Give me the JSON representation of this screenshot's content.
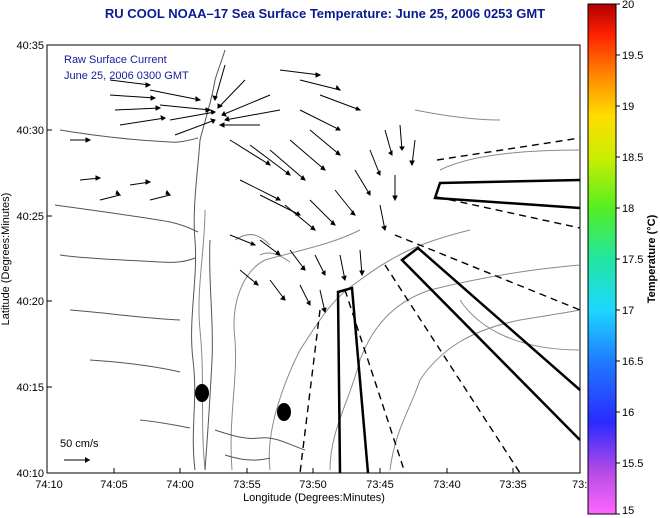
{
  "title": "RU COOL   NOAA–17  Sea Surface Temperature:  June 25, 2006 0253 GMT",
  "legend": {
    "line1": "Raw Surface Current",
    "line2": "June 25, 2006 0300 GMT"
  },
  "scale_label": "50 cm/s",
  "axes": {
    "xlabel": "Longitude (Degrees:Minutes)",
    "ylabel": "Latitude (Degrees:Minutes)",
    "x_ticks": [
      "74:10",
      "74:05",
      "74:00",
      "73:55",
      "73:50",
      "73:45",
      "73:40",
      "73:35",
      "73:3"
    ],
    "y_ticks": [
      "40:35",
      "40:30",
      "40:25",
      "40:20",
      "40:15",
      "40:10"
    ]
  },
  "colorbar": {
    "label": "Temperature (°C)",
    "ticks": [
      "20",
      "19.5",
      "19",
      "18.5",
      "18",
      "17.5",
      "17",
      "16.5",
      "16",
      "15.5",
      "15"
    ],
    "min": 15,
    "max": 20
  }
}
